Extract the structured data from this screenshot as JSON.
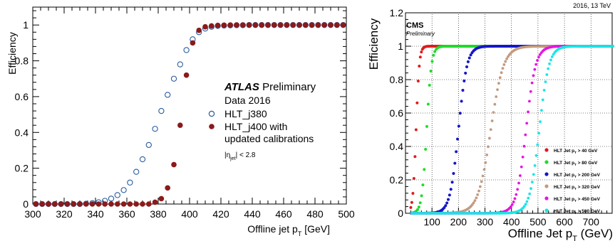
{
  "chart_data": [
    {
      "type": "scatter",
      "ylabel": "Efficiency",
      "xlabel": "Offline jet p",
      "xlabel_sub": "T",
      "xlabel_unit": " [GeV]",
      "xlim": [
        300,
        500
      ],
      "ylim": [
        0,
        1.1
      ],
      "xticks": [
        300,
        320,
        340,
        360,
        380,
        400,
        420,
        440,
        460,
        480,
        500
      ],
      "yticks": [
        0,
        0.2,
        0.4,
        0.6,
        0.8,
        1
      ],
      "ytick_labels": [
        "0",
        "0.2",
        "0.4",
        "0.6",
        "0.8",
        "1"
      ],
      "grid": false,
      "legend_position": "center-right",
      "annotation": {
        "experiment": "ATLAS",
        "status": "Preliminary",
        "dataset": "Data 2016",
        "eta_cut": "|η",
        "eta_sub": "jet",
        "eta_rest": "| < 2.8"
      },
      "series": [
        {
          "name": "HLT_j380",
          "marker": "open-circle",
          "color": "#2a5d9f",
          "x": [
            302,
            306,
            310,
            314,
            318,
            322,
            326,
            330,
            334,
            338,
            342,
            346,
            350,
            354,
            358,
            362,
            366,
            370,
            374,
            378,
            382,
            386,
            390,
            394,
            398,
            402,
            406,
            410,
            414,
            418,
            422,
            426,
            430,
            434,
            438,
            442,
            446,
            450,
            454,
            458,
            462,
            466,
            470,
            474,
            478,
            482,
            486,
            490,
            494,
            498
          ],
          "y": [
            0,
            0,
            0,
            0,
            0,
            0,
            0,
            0,
            0.002,
            0.005,
            0.01,
            0.018,
            0.03,
            0.05,
            0.078,
            0.12,
            0.18,
            0.25,
            0.33,
            0.42,
            0.52,
            0.61,
            0.7,
            0.78,
            0.86,
            0.92,
            0.96,
            0.98,
            0.99,
            0.995,
            0.997,
            0.998,
            0.999,
            0.999,
            1,
            1,
            1,
            1,
            1,
            1,
            1,
            1,
            1,
            1,
            1,
            1,
            1,
            1,
            1,
            1
          ]
        },
        {
          "name": "HLT_j400 with",
          "name_line2": "updated calibrations",
          "marker": "filled-circle",
          "color": "#8b1a1a",
          "x": [
            302,
            306,
            310,
            314,
            318,
            322,
            326,
            330,
            334,
            338,
            342,
            346,
            350,
            354,
            358,
            362,
            366,
            370,
            374,
            378,
            382,
            386,
            390,
            394,
            398,
            402,
            406,
            410,
            414,
            418,
            422,
            426,
            430,
            434,
            438,
            442,
            446,
            450,
            454,
            458,
            462,
            466,
            470,
            474,
            478,
            482,
            486,
            490,
            494,
            498
          ],
          "y": [
            0,
            0,
            0,
            0,
            0,
            0,
            0,
            0,
            0,
            0,
            0,
            0,
            0,
            0,
            0,
            0,
            0,
            0,
            0,
            0.01,
            0.03,
            0.09,
            0.22,
            0.44,
            0.72,
            0.9,
            0.97,
            0.99,
            0.995,
            0.998,
            0.999,
            1,
            1,
            1,
            1,
            1,
            1,
            1,
            1,
            1,
            1,
            1,
            1,
            1,
            1,
            1,
            1,
            1,
            1,
            1
          ]
        }
      ]
    },
    {
      "type": "scatter",
      "ylabel": "Efficiency",
      "xlabel": "Offline Jet p",
      "xlabel_sub": "T",
      "xlabel_unit": " (GeV)",
      "xlim": [
        0,
        780
      ],
      "ylim": [
        0,
        1.2
      ],
      "xticks": [
        100,
        200,
        300,
        400,
        500,
        600,
        700
      ],
      "yticks": [
        0,
        0.2,
        0.4,
        0.6,
        0.8,
        1,
        1.2
      ],
      "ytick_labels": [
        "0",
        "0.2",
        "0.4",
        "0.6",
        "0.8",
        "1",
        "1.2"
      ],
      "grid": true,
      "legend_position": "bottom-right",
      "top_right_label": "2016, 13 TeV",
      "experiment": "CMS",
      "status": "Preliminary",
      "series": [
        {
          "name": "HLT Jet p",
          "sub": "T",
          "cut": " > 40 GeV",
          "color": "#e01b1b",
          "threshold": 40,
          "width": 6,
          "start": 20,
          "end": 780
        },
        {
          "name": "HLT Jet p",
          "sub": "T",
          "cut": " > 80 GeV",
          "color": "#1fdc2a",
          "threshold": 80,
          "width": 9,
          "start": 20,
          "end": 780
        },
        {
          "name": "HLT Jet p",
          "sub": "T",
          "cut": " > 200 GeV",
          "color": "#1515c8",
          "threshold": 200,
          "width": 16,
          "start": 20,
          "end": 780
        },
        {
          "name": "HLT Jet p",
          "sub": "T",
          "cut": " > 320 GeV",
          "color": "#c49a7e",
          "threshold": 322,
          "width": 24,
          "start": 20,
          "end": 780
        },
        {
          "name": "HLT Jet p",
          "sub": "T",
          "cut": " > 450 GeV",
          "color": "#e514e0",
          "threshold": 455,
          "width": 18,
          "start": 20,
          "end": 780
        },
        {
          "name": "HLT Jet p",
          "sub": "T",
          "cut": " > 500 GeV",
          "color": "#18e6e6",
          "threshold": 505,
          "width": 18,
          "start": 20,
          "end": 780
        }
      ]
    }
  ]
}
